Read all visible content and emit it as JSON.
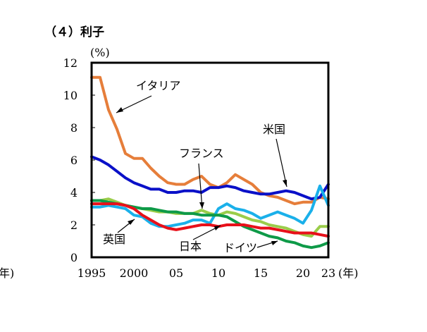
{
  "heading": "（４）利子",
  "unit_label": "(%)",
  "left_edge_label": "年)",
  "chart_data": {
    "type": "line",
    "title": "",
    "ylabel": "(%)",
    "xlabel": "(年)",
    "ylim": [
      0,
      12
    ],
    "y_ticks": [
      0,
      2,
      4,
      6,
      8,
      10,
      12
    ],
    "xlim": [
      1995,
      2023
    ],
    "x_ticks": [
      {
        "x": 1995,
        "label": "1995"
      },
      {
        "x": 2000,
        "label": "2000"
      },
      {
        "x": 2005,
        "label": "05"
      },
      {
        "x": 2010,
        "label": "10"
      },
      {
        "x": 2015,
        "label": "15"
      },
      {
        "x": 2020,
        "label": "20"
      },
      {
        "x": 2023,
        "label": "23"
      }
    ],
    "grid": false,
    "x": [
      1995,
      1996,
      1997,
      1998,
      1999,
      2000,
      2001,
      2002,
      2003,
      2004,
      2005,
      2006,
      2007,
      2008,
      2009,
      2010,
      2011,
      2012,
      2013,
      2014,
      2015,
      2016,
      2017,
      2018,
      2019,
      2020,
      2021,
      2022,
      2023
    ],
    "series": [
      {
        "name": "イタリア",
        "color": "#e67e3a",
        "values": [
          11.1,
          11.1,
          9.1,
          7.9,
          6.4,
          6.1,
          6.1,
          5.5,
          5.0,
          4.6,
          4.5,
          4.5,
          4.8,
          5.0,
          4.5,
          4.3,
          4.6,
          5.1,
          4.8,
          4.5,
          4.0,
          3.8,
          3.7,
          3.5,
          3.3,
          3.4,
          3.4,
          3.7,
          3.6
        ]
      },
      {
        "name": "米国",
        "color": "#0a10c8",
        "values": [
          6.2,
          6.0,
          5.7,
          5.3,
          4.9,
          4.6,
          4.4,
          4.2,
          4.2,
          4.0,
          4.0,
          4.1,
          4.1,
          4.0,
          4.3,
          4.3,
          4.4,
          4.3,
          4.1,
          4.0,
          3.9,
          3.9,
          4.0,
          4.1,
          4.0,
          3.8,
          3.6,
          3.7,
          4.5
        ]
      },
      {
        "name": "フランス",
        "color": "#9acd4a",
        "values": [
          3.5,
          3.5,
          3.6,
          3.4,
          3.2,
          3.1,
          3.0,
          2.9,
          2.8,
          2.8,
          2.7,
          2.7,
          2.7,
          2.9,
          2.7,
          2.6,
          2.8,
          2.7,
          2.5,
          2.3,
          2.2,
          2.0,
          1.9,
          1.8,
          1.6,
          1.4,
          1.3,
          1.9,
          1.9
        ]
      },
      {
        "name": "英国",
        "color": "#1ab0ea",
        "values": [
          3.1,
          3.1,
          3.2,
          3.1,
          3.0,
          2.6,
          2.5,
          2.1,
          1.9,
          1.9,
          2.0,
          2.1,
          2.3,
          2.3,
          2.1,
          3.0,
          3.3,
          3.0,
          2.9,
          2.7,
          2.4,
          2.6,
          2.8,
          2.6,
          2.4,
          2.1,
          2.9,
          4.4,
          3.2
        ]
      },
      {
        "name": "ドイツ",
        "color": "#0e9a48",
        "values": [
          3.5,
          3.5,
          3.4,
          3.3,
          3.2,
          3.1,
          3.0,
          3.0,
          2.9,
          2.8,
          2.8,
          2.7,
          2.7,
          2.6,
          2.6,
          2.6,
          2.5,
          2.2,
          1.9,
          1.7,
          1.5,
          1.3,
          1.2,
          1.0,
          0.9,
          0.7,
          0.6,
          0.7,
          0.9
        ]
      },
      {
        "name": "日本",
        "color": "#e8101a",
        "values": [
          3.3,
          3.3,
          3.3,
          3.3,
          3.2,
          3.0,
          2.6,
          2.3,
          2.0,
          1.8,
          1.7,
          1.8,
          1.9,
          2.0,
          2.0,
          1.9,
          2.0,
          2.0,
          2.0,
          1.9,
          1.8,
          1.8,
          1.7,
          1.6,
          1.5,
          1.5,
          1.5,
          1.4,
          1.3
        ]
      }
    ],
    "annotations": [
      "イタリア",
      "米国",
      "フランス",
      "英国",
      "日本",
      "ドイツ"
    ],
    "x_unit_label": "(年)"
  }
}
